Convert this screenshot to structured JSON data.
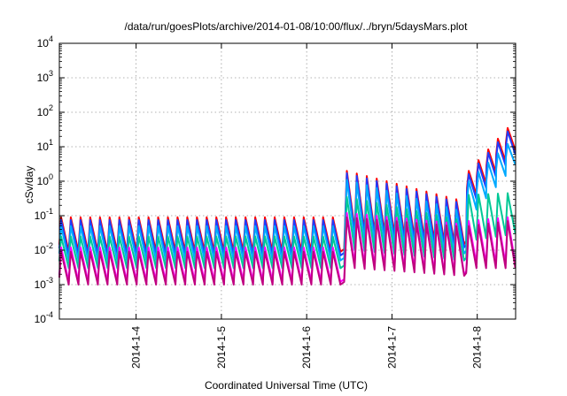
{
  "chart_data": {
    "type": "line",
    "title": "/data/run/goesPlots/archive/2014-01-08/10:00/flux/../bryn/5daysMars.plot",
    "xlabel": "Coordinated Universal Time (UTC)",
    "ylabel": "cSv/day",
    "y_scale": "log",
    "ylim": [
      0.0001,
      10000
    ],
    "y_ticks": [
      {
        "base": "10",
        "exp": "-4"
      },
      {
        "base": "10",
        "exp": "-3"
      },
      {
        "base": "10",
        "exp": "-2"
      },
      {
        "base": "10",
        "exp": "-1"
      },
      {
        "base": "10",
        "exp": "0"
      },
      {
        "base": "10",
        "exp": "1"
      },
      {
        "base": "10",
        "exp": "2"
      },
      {
        "base": "10",
        "exp": "3"
      },
      {
        "base": "10",
        "exp": "4"
      }
    ],
    "x_ticks": [
      "2014-1-4",
      "2014-1-5",
      "2014-1-6",
      "2014-1-7",
      "2014-1-8"
    ],
    "x_range_days": [
      3.1,
      8.45
    ],
    "grid": true,
    "colors": [
      "#ff0000",
      "#1f3cff",
      "#00aaff",
      "#00c896",
      "#ff00ff",
      "#c00080"
    ],
    "series": [
      {
        "color": "#ff0000",
        "segments": [
          {
            "x_start": 3.1,
            "x_end": 6.4,
            "peak": 0.09,
            "trough": 0.009
          },
          {
            "x_start": 6.45,
            "x_end": 7.85,
            "peak": 2.0,
            "peak_end": 0.3,
            "trough": 0.04,
            "trough_end": 0.015
          },
          {
            "x_start": 7.88,
            "x_end": 8.45,
            "peak": 2.0,
            "peak_end": 35,
            "trough": 0.4,
            "trough_end": 8
          }
        ]
      },
      {
        "color": "#1f3cff",
        "segments": [
          {
            "x_start": 3.1,
            "x_end": 6.4,
            "peak": 0.075,
            "trough": 0.007
          },
          {
            "x_start": 6.45,
            "x_end": 7.85,
            "peak": 1.7,
            "peak_end": 0.25,
            "trough": 0.03,
            "trough_end": 0.012
          },
          {
            "x_start": 7.88,
            "x_end": 8.45,
            "peak": 1.6,
            "peak_end": 28,
            "trough": 0.3,
            "trough_end": 6
          }
        ]
      },
      {
        "color": "#00aaff",
        "segments": [
          {
            "x_start": 3.1,
            "x_end": 6.4,
            "peak": 0.05,
            "trough": 0.005
          },
          {
            "x_start": 6.45,
            "x_end": 7.85,
            "peak": 1.1,
            "peak_end": 0.15,
            "trough": 0.02,
            "trough_end": 0.008
          },
          {
            "x_start": 7.88,
            "x_end": 8.45,
            "peak": 1.0,
            "peak_end": 12,
            "trough": 0.15,
            "trough_end": 3
          }
        ]
      },
      {
        "color": "#00c896",
        "segments": [
          {
            "x_start": 3.1,
            "x_end": 6.4,
            "peak": 0.025,
            "trough": 0.003
          },
          {
            "x_start": 6.45,
            "x_end": 7.85,
            "peak": 0.35,
            "peak_end": 0.08,
            "trough": 0.01,
            "trough_end": 0.005
          },
          {
            "x_start": 7.88,
            "x_end": 8.45,
            "peak": 0.4,
            "peak_end": 0.45,
            "trough": 0.02,
            "trough_end": 0.03
          }
        ]
      },
      {
        "color": "#ff00ff",
        "segments": [
          {
            "x_start": 3.1,
            "x_end": 6.4,
            "peak": 0.012,
            "trough": 0.0012
          },
          {
            "x_start": 6.45,
            "x_end": 7.85,
            "peak": 0.12,
            "peak_end": 0.06,
            "trough": 0.004,
            "trough_end": 0.002
          },
          {
            "x_start": 7.88,
            "x_end": 8.45,
            "peak": 0.07,
            "peak_end": 0.09,
            "trough": 0.004,
            "trough_end": 0.004
          }
        ]
      },
      {
        "color": "#c00080",
        "segments": [
          {
            "x_start": 3.1,
            "x_end": 6.4,
            "peak": 0.009,
            "trough": 0.001
          },
          {
            "x_start": 6.45,
            "x_end": 7.85,
            "peak": 0.09,
            "peak_end": 0.05,
            "trough": 0.003,
            "trough_end": 0.0018
          },
          {
            "x_start": 7.88,
            "x_end": 8.45,
            "peak": 0.05,
            "peak_end": 0.07,
            "trough": 0.003,
            "trough_end": 0.003
          }
        ]
      }
    ]
  }
}
